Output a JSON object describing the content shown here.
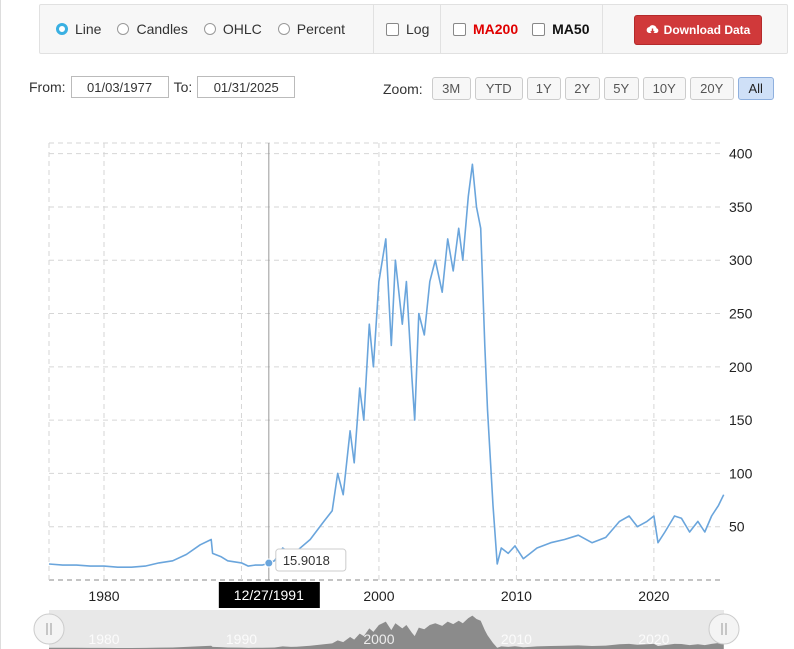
{
  "toolbar": {
    "chart_types": [
      {
        "label": "Line",
        "selected": true
      },
      {
        "label": "Candles",
        "selected": false
      },
      {
        "label": "OHLC",
        "selected": false
      },
      {
        "label": "Percent",
        "selected": false
      }
    ],
    "log_label": "Log",
    "ma200_label": "MA200",
    "ma50_label": "MA50",
    "download_label": "Download Data",
    "colors": {
      "accent": "#3ab0e2",
      "ma200": "#e00000",
      "download_bg": "#d0393a"
    }
  },
  "range": {
    "from_label": "From:",
    "from_value": "01/03/1977",
    "to_label": "To:",
    "to_value": "01/31/2025"
  },
  "zoom": {
    "label": "Zoom:",
    "buttons": [
      "3M",
      "YTD",
      "1Y",
      "2Y",
      "5Y",
      "10Y",
      "20Y",
      "All"
    ],
    "active": "All"
  },
  "tooltip": {
    "date": "12/27/1991",
    "value": "15.9018"
  },
  "chart_data": {
    "type": "line",
    "title": "",
    "xlabel": "",
    "ylabel": "",
    "xlim": [
      1976.0,
      2025.1
    ],
    "ylim": [
      0,
      410
    ],
    "x_ticks": [
      1980,
      2000,
      2010,
      2020
    ],
    "y_ticks": [
      50,
      100,
      150,
      200,
      250,
      300,
      350,
      400
    ],
    "grid": true,
    "line_color": "#6aa5dc",
    "series": [
      {
        "points": [
          [
            1976.0,
            15
          ],
          [
            1977.0,
            14
          ],
          [
            1978.0,
            14
          ],
          [
            1979.0,
            13
          ],
          [
            1980.0,
            13
          ],
          [
            1981.0,
            12
          ],
          [
            1982.0,
            12
          ],
          [
            1983.0,
            13
          ],
          [
            1984.0,
            16
          ],
          [
            1985.0,
            18
          ],
          [
            1986.0,
            24
          ],
          [
            1987.0,
            33
          ],
          [
            1987.8,
            38
          ],
          [
            1987.9,
            25
          ],
          [
            1988.5,
            22
          ],
          [
            1989.0,
            18
          ],
          [
            1990.0,
            16
          ],
          [
            1990.5,
            13
          ],
          [
            1991.0,
            14
          ],
          [
            1991.5,
            14
          ],
          [
            1991.99,
            15.9
          ],
          [
            1992.4,
            18
          ],
          [
            1993.0,
            30
          ],
          [
            1993.6,
            25
          ],
          [
            1994.0,
            27
          ],
          [
            1995.0,
            38
          ],
          [
            1996.0,
            55
          ],
          [
            1996.6,
            65
          ],
          [
            1997.0,
            100
          ],
          [
            1997.4,
            80
          ],
          [
            1997.9,
            140
          ],
          [
            1998.2,
            110
          ],
          [
            1998.6,
            180
          ],
          [
            1998.9,
            150
          ],
          [
            1999.3,
            240
          ],
          [
            1999.6,
            200
          ],
          [
            2000.0,
            280
          ],
          [
            2000.5,
            320
          ],
          [
            2000.9,
            220
          ],
          [
            2001.2,
            300
          ],
          [
            2001.7,
            240
          ],
          [
            2002.0,
            280
          ],
          [
            2002.4,
            190
          ],
          [
            2002.6,
            150
          ],
          [
            2002.9,
            250
          ],
          [
            2003.3,
            230
          ],
          [
            2003.7,
            280
          ],
          [
            2004.1,
            300
          ],
          [
            2004.6,
            270
          ],
          [
            2005.0,
            320
          ],
          [
            2005.4,
            290
          ],
          [
            2005.8,
            330
          ],
          [
            2006.1,
            300
          ],
          [
            2006.5,
            360
          ],
          [
            2006.8,
            390
          ],
          [
            2007.1,
            350
          ],
          [
            2007.4,
            330
          ],
          [
            2007.7,
            220
          ],
          [
            2007.9,
            160
          ],
          [
            2008.3,
            70
          ],
          [
            2008.6,
            15
          ],
          [
            2008.9,
            30
          ],
          [
            2009.4,
            25
          ],
          [
            2009.9,
            32
          ],
          [
            2010.5,
            20
          ],
          [
            2011.0,
            25
          ],
          [
            2011.5,
            30
          ],
          [
            2012.5,
            35
          ],
          [
            2013.5,
            38
          ],
          [
            2014.5,
            42
          ],
          [
            2015.5,
            35
          ],
          [
            2016.5,
            40
          ],
          [
            2017.5,
            55
          ],
          [
            2018.2,
            60
          ],
          [
            2018.8,
            50
          ],
          [
            2019.5,
            55
          ],
          [
            2020.0,
            60
          ],
          [
            2020.3,
            35
          ],
          [
            2020.8,
            45
          ],
          [
            2021.5,
            60
          ],
          [
            2022.0,
            58
          ],
          [
            2022.6,
            45
          ],
          [
            2023.2,
            55
          ],
          [
            2023.7,
            45
          ],
          [
            2024.2,
            60
          ],
          [
            2024.7,
            70
          ],
          [
            2025.08,
            80
          ]
        ]
      }
    ],
    "navigator": {
      "x_labels": [
        1980,
        1990,
        2000,
        2010,
        2020
      ]
    }
  }
}
